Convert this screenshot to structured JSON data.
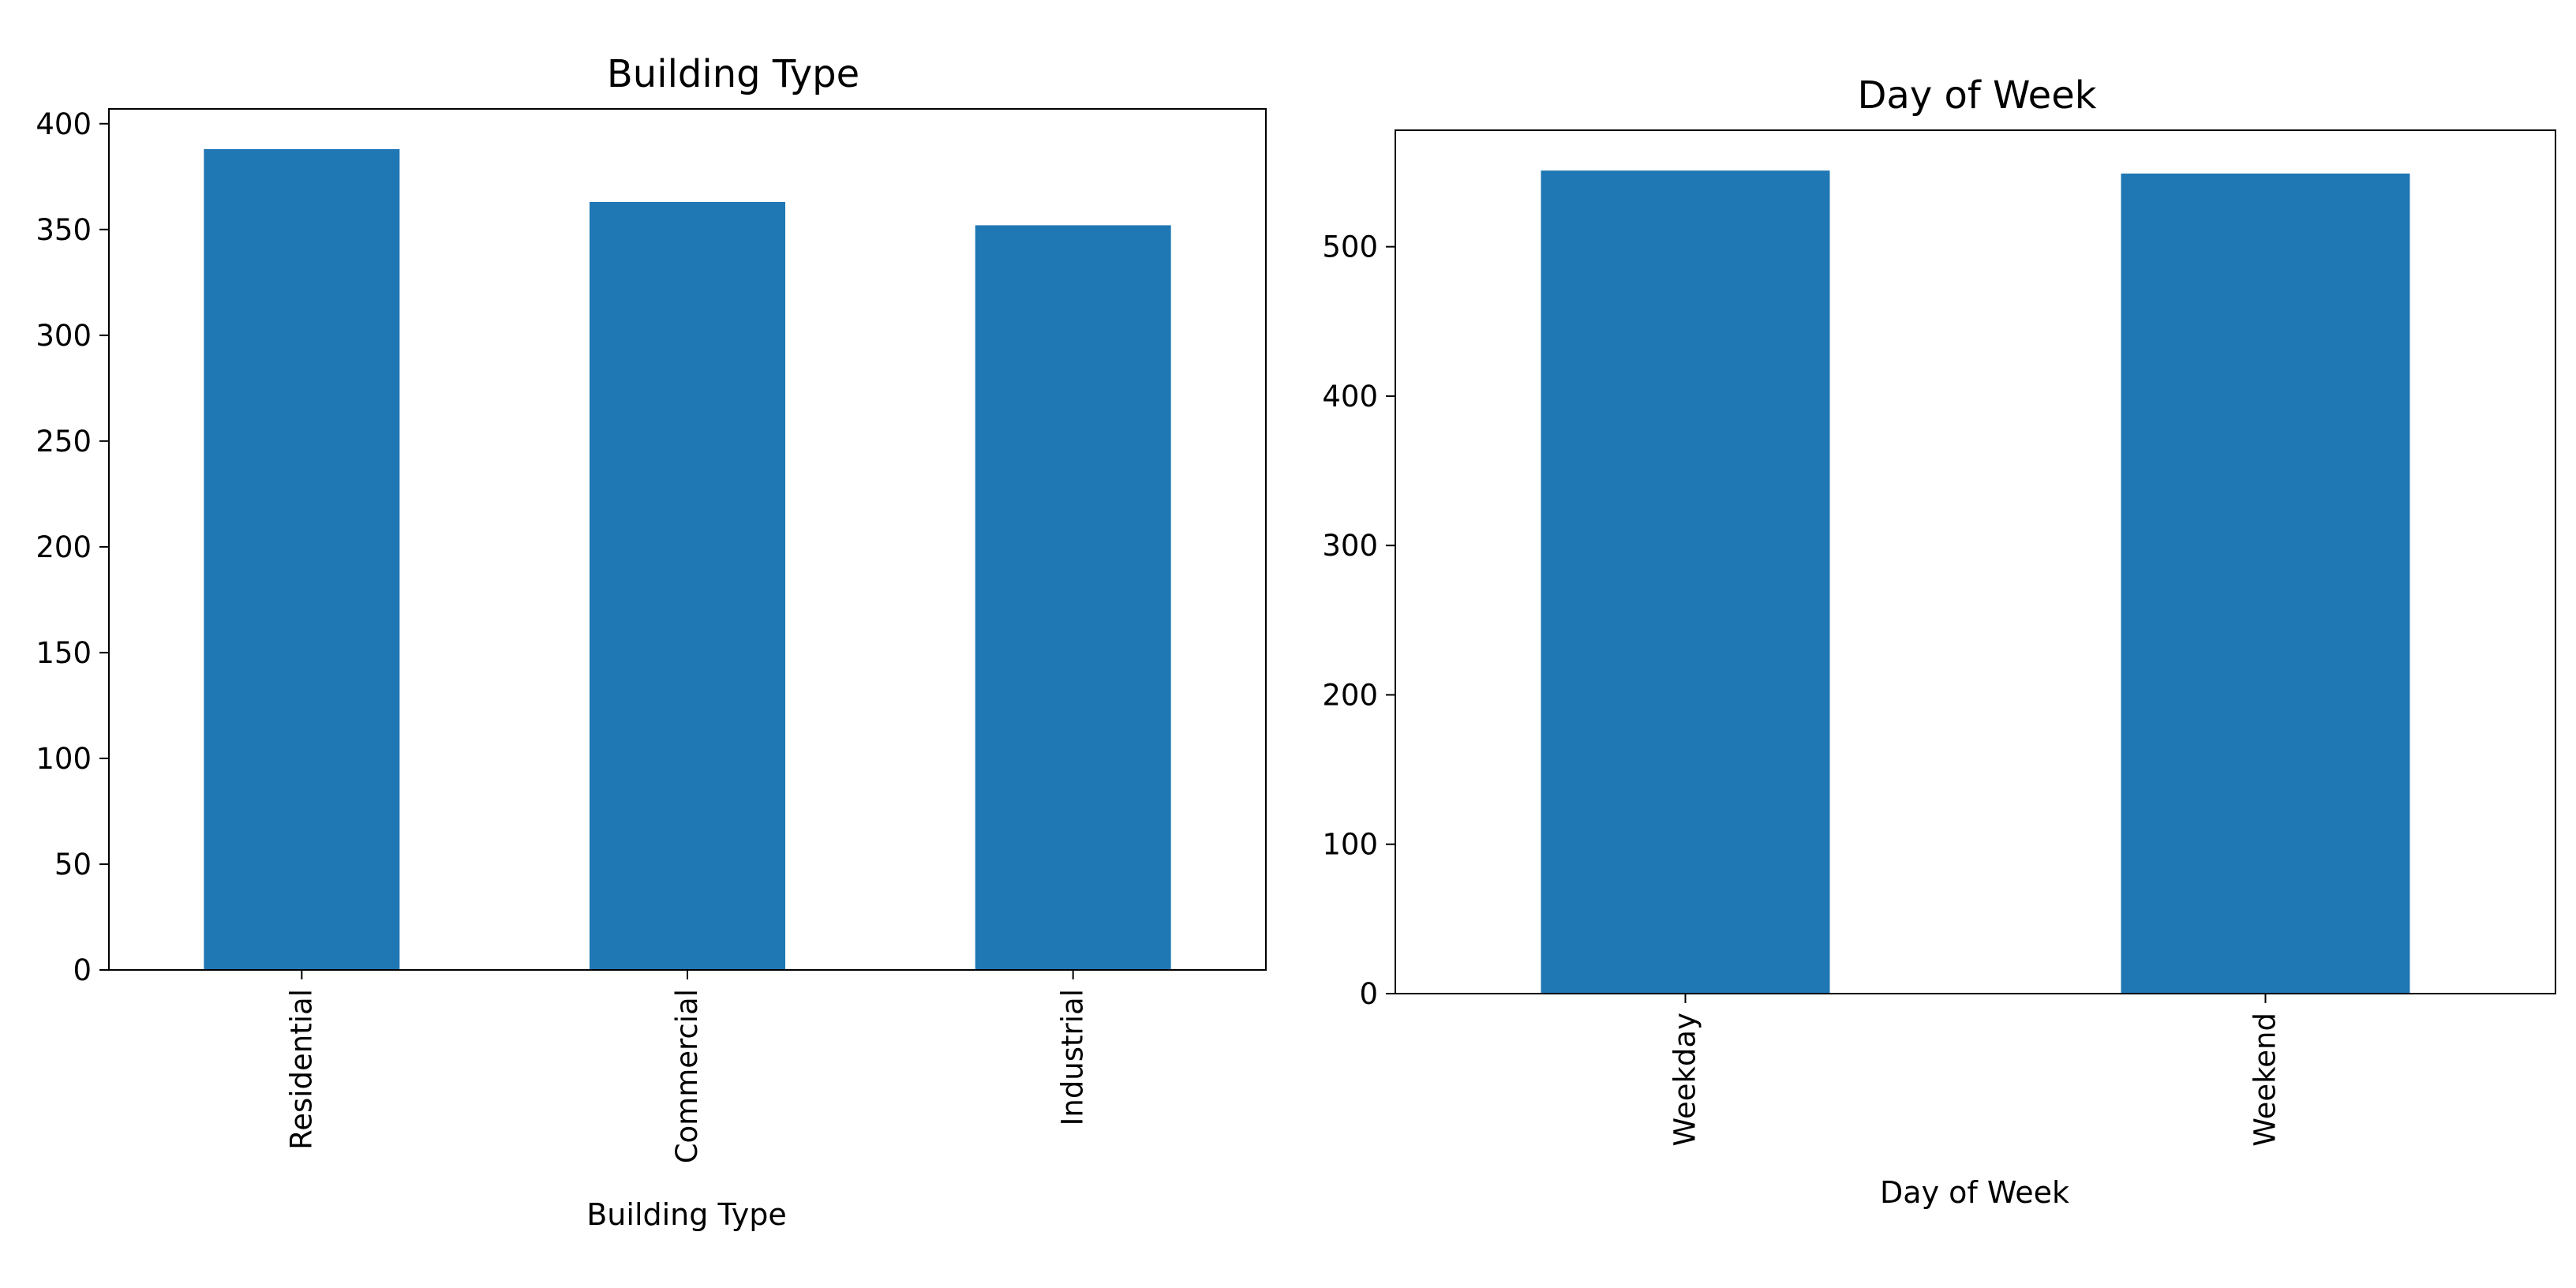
{
  "chart_data": [
    {
      "type": "bar",
      "title": "Building Type",
      "xlabel": "Building Type",
      "ylabel": "",
      "categories": [
        "Residential",
        "Commercial",
        "Industrial"
      ],
      "values": [
        388,
        363,
        352
      ],
      "ylim": [
        0,
        407
      ],
      "yticks": [
        0,
        50,
        100,
        150,
        200,
        250,
        300,
        350,
        400
      ],
      "bar_color": "#1f77b4",
      "grid": false,
      "legend": "none"
    },
    {
      "type": "bar",
      "title": "Day of Week",
      "xlabel": "Day of Week",
      "ylabel": "",
      "categories": [
        "Weekday",
        "Weekend"
      ],
      "values": [
        551,
        549
      ],
      "ylim": [
        0,
        578
      ],
      "yticks": [
        0,
        100,
        200,
        300,
        400,
        500
      ],
      "bar_color": "#1f77b4",
      "grid": false,
      "legend": "none"
    }
  ]
}
